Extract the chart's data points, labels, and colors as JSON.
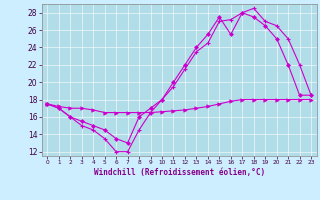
{
  "bg_color": "#cceeff",
  "plot_bg_color": "#b0dde8",
  "line_color": "#cc00cc",
  "grid_color": "#d0eef5",
  "xlabel": "Windchill (Refroidissement éolien,°C)",
  "ylim": [
    11.5,
    29.0
  ],
  "xlim": [
    -0.5,
    23.5
  ],
  "yticks": [
    12,
    14,
    16,
    18,
    20,
    22,
    24,
    26,
    28
  ],
  "xticks": [
    0,
    1,
    2,
    3,
    4,
    5,
    6,
    7,
    8,
    9,
    10,
    11,
    12,
    13,
    14,
    15,
    16,
    17,
    18,
    19,
    20,
    21,
    22,
    23
  ],
  "series1_x": [
    0,
    1,
    2,
    3,
    4,
    5,
    6,
    7,
    8,
    9,
    10,
    11,
    12,
    13,
    14,
    15,
    16,
    17,
    18,
    19,
    20,
    21,
    22,
    23
  ],
  "series1_y": [
    17.5,
    17.0,
    16.0,
    15.0,
    14.5,
    13.5,
    12.0,
    12.0,
    14.5,
    16.5,
    18.0,
    19.5,
    21.5,
    23.5,
    24.5,
    27.0,
    27.2,
    28.0,
    28.5,
    27.0,
    26.5,
    25.0,
    22.0,
    18.5
  ],
  "series2_x": [
    0,
    1,
    2,
    3,
    4,
    5,
    6,
    7,
    8,
    9,
    10,
    11,
    12,
    13,
    14,
    15,
    16,
    17,
    18,
    19,
    20,
    21,
    22,
    23
  ],
  "series2_y": [
    17.5,
    17.0,
    16.0,
    15.5,
    15.0,
    14.5,
    13.5,
    13.0,
    16.0,
    17.0,
    18.0,
    20.0,
    22.0,
    24.0,
    25.5,
    27.5,
    25.5,
    28.0,
    27.5,
    26.5,
    25.0,
    22.0,
    18.5,
    18.5
  ],
  "series3_x": [
    0,
    1,
    2,
    3,
    4,
    5,
    6,
    7,
    8,
    9,
    10,
    11,
    12,
    13,
    14,
    15,
    16,
    17,
    18,
    19,
    20,
    21,
    22,
    23
  ],
  "series3_y": [
    17.5,
    17.2,
    17.0,
    17.0,
    16.8,
    16.5,
    16.5,
    16.5,
    16.5,
    16.5,
    16.6,
    16.7,
    16.8,
    17.0,
    17.2,
    17.5,
    17.8,
    18.0,
    18.0,
    18.0,
    18.0,
    18.0,
    18.0,
    18.0
  ]
}
